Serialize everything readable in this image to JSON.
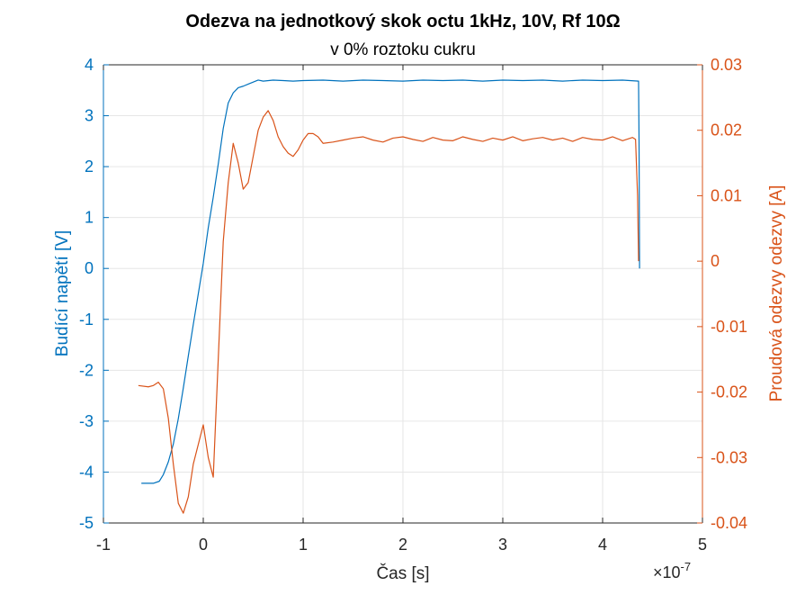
{
  "chart_data": {
    "type": "line",
    "title": "Odezva na jednotkový skok octu 1kHz, 10V, Rf 10Ω",
    "subtitle": "v 0% roztoku cukru",
    "xlabel": "Čas [s]",
    "x_exponent_label": "×10",
    "x_exponent_value": "-7",
    "ylabel_left": "Budící napětí [V]",
    "ylabel_right": "Proudová odezvy odezvy [A]",
    "xlim": [
      -1e-07,
      5e-07
    ],
    "ylim_left": [
      -5,
      4
    ],
    "ylim_right": [
      -0.04,
      0.03
    ],
    "x_ticks": [
      -1,
      0,
      1,
      2,
      3,
      4,
      5
    ],
    "x_tick_labels": [
      "-1",
      "0",
      "1",
      "2",
      "3",
      "4",
      "5"
    ],
    "y_left_ticks": [
      4,
      3,
      2,
      1,
      0,
      -1,
      -2,
      -3,
      -4,
      -5
    ],
    "y_left_tick_labels": [
      "4",
      "3",
      "2",
      "1",
      "0",
      "-1",
      "-2",
      "-3",
      "-4",
      "-5"
    ],
    "y_right_ticks": [
      0.03,
      0.02,
      0.01,
      0,
      -0.01,
      -0.02,
      -0.03,
      -0.04
    ],
    "y_right_tick_labels": [
      "0.03",
      "0.02",
      "0.01",
      "0",
      "-0.01",
      "-0.02",
      "-0.03",
      "-0.04"
    ],
    "grid": true,
    "colors": {
      "left": "#0072BD",
      "right": "#D95319"
    },
    "series": [
      {
        "axis": "left",
        "color": "#0072BD",
        "x_scale": 1e-07,
        "x": [
          -0.62,
          -0.5,
          -0.44,
          -0.4,
          -0.35,
          -0.3,
          -0.25,
          -0.2,
          -0.15,
          -0.1,
          -0.05,
          0.0,
          0.05,
          0.1,
          0.15,
          0.2,
          0.25,
          0.3,
          0.35,
          0.4,
          0.45,
          0.5,
          0.55,
          0.6,
          0.7,
          0.8,
          0.9,
          1.0,
          1.2,
          1.4,
          1.6,
          1.8,
          2.0,
          2.2,
          2.4,
          2.6,
          2.8,
          3.0,
          3.2,
          3.4,
          3.6,
          3.8,
          4.0,
          4.2,
          4.36,
          4.365,
          4.37
        ],
        "values": [
          -4.22,
          -4.22,
          -4.18,
          -4.05,
          -3.8,
          -3.45,
          -2.95,
          -2.35,
          -1.72,
          -1.1,
          -0.5,
          0.1,
          0.8,
          1.4,
          2.05,
          2.75,
          3.25,
          3.45,
          3.55,
          3.58,
          3.62,
          3.66,
          3.7,
          3.68,
          3.7,
          3.69,
          3.68,
          3.69,
          3.7,
          3.68,
          3.7,
          3.69,
          3.68,
          3.7,
          3.69,
          3.7,
          3.68,
          3.7,
          3.69,
          3.7,
          3.68,
          3.7,
          3.69,
          3.7,
          3.68,
          2.5,
          0.0
        ]
      },
      {
        "axis": "right",
        "color": "#D95319",
        "x_scale": 1e-07,
        "x": [
          -0.65,
          -0.55,
          -0.5,
          -0.45,
          -0.4,
          -0.35,
          -0.3,
          -0.25,
          -0.2,
          -0.15,
          -0.1,
          -0.05,
          0.0,
          0.05,
          0.1,
          0.15,
          0.2,
          0.25,
          0.3,
          0.35,
          0.4,
          0.45,
          0.5,
          0.55,
          0.6,
          0.65,
          0.7,
          0.75,
          0.8,
          0.85,
          0.9,
          0.95,
          1.0,
          1.05,
          1.1,
          1.15,
          1.2,
          1.3,
          1.4,
          1.5,
          1.6,
          1.7,
          1.8,
          1.9,
          2.0,
          2.1,
          2.2,
          2.3,
          2.4,
          2.5,
          2.6,
          2.7,
          2.8,
          2.9,
          3.0,
          3.1,
          3.2,
          3.3,
          3.4,
          3.5,
          3.6,
          3.7,
          3.8,
          3.9,
          4.0,
          4.1,
          4.2,
          4.3,
          4.33,
          4.35,
          4.36
        ],
        "values": [
          -0.019,
          -0.0192,
          -0.019,
          -0.0185,
          -0.0195,
          -0.024,
          -0.031,
          -0.037,
          -0.0385,
          -0.036,
          -0.031,
          -0.028,
          -0.025,
          -0.03,
          -0.033,
          -0.015,
          0.003,
          0.012,
          0.018,
          0.015,
          0.011,
          0.012,
          0.016,
          0.02,
          0.022,
          0.023,
          0.0215,
          0.019,
          0.0175,
          0.0165,
          0.016,
          0.017,
          0.0185,
          0.0195,
          0.0195,
          0.019,
          0.018,
          0.0182,
          0.0185,
          0.0188,
          0.019,
          0.0185,
          0.0182,
          0.0188,
          0.019,
          0.0186,
          0.0183,
          0.0189,
          0.0185,
          0.0184,
          0.019,
          0.0186,
          0.0183,
          0.0188,
          0.0185,
          0.019,
          0.0184,
          0.0187,
          0.0189,
          0.0185,
          0.0188,
          0.0183,
          0.0189,
          0.0186,
          0.0185,
          0.019,
          0.0184,
          0.0189,
          0.0186,
          0.01,
          0.0
        ]
      }
    ]
  }
}
